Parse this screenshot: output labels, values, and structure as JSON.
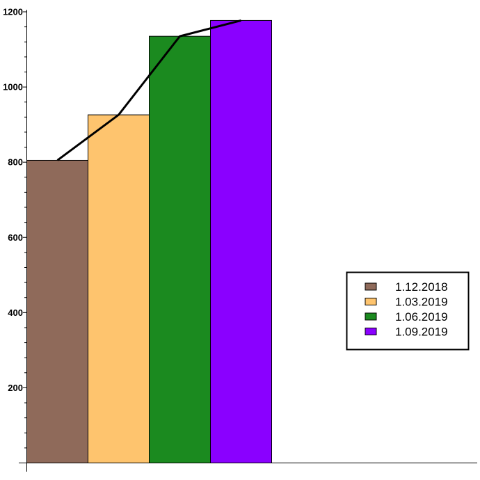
{
  "chart_data": {
    "type": "bar",
    "categories": [
      "1.12.2018",
      "1.03.2019",
      "1.06.2019",
      "1.09.2019"
    ],
    "values": [
      805,
      926,
      1135,
      1177
    ],
    "colors": [
      "#8f6a5a",
      "#fec46e",
      "#1b8a1f",
      "#8a00ff"
    ],
    "line": {
      "values": [
        805,
        926,
        1135,
        1177
      ],
      "color": "#000000"
    },
    "ylim": [
      0,
      1200
    ],
    "yticks": [
      200,
      400,
      600,
      800,
      1000,
      1200
    ],
    "ytick_labels": [
      "200",
      "400",
      "600",
      "800",
      "1000",
      "1200"
    ],
    "grid": false,
    "legend": {
      "placement": "right",
      "entries": [
        "1.12.2018",
        "1.03.2019",
        "1.06.2019",
        "1.09.2019"
      ]
    },
    "title": "",
    "xlabel": "",
    "ylabel": ""
  }
}
